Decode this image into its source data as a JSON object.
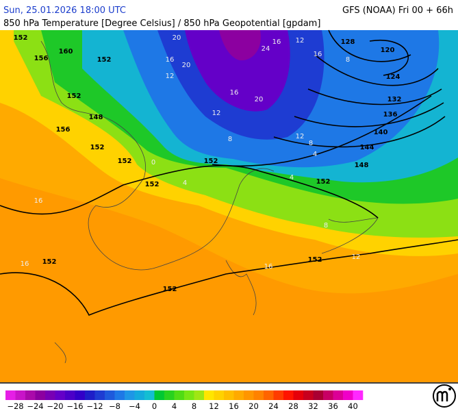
{
  "header": {
    "valid_time": "Sun, 25.01.2026 18:00 UTC",
    "model": "GFS (NOAA) Fri 00 + 66h",
    "title": "850 hPa Temperature [Degree Celsius] / 850 hPa Geopotential [gpdam]"
  },
  "map": {
    "geopotential_labels": [
      128,
      120,
      124,
      132,
      136,
      140,
      144,
      148,
      152,
      152,
      152,
      152,
      152,
      152,
      152,
      148,
      152,
      152,
      156,
      152,
      160,
      152,
      156
    ],
    "temperature_labels": [
      20,
      20,
      24,
      16,
      12,
      16,
      8,
      20,
      16,
      12,
      8,
      12,
      8,
      4,
      4,
      0,
      4,
      8,
      12,
      16,
      16,
      16,
      12,
      16
    ]
  },
  "legend": {
    "colors": [
      "#e61ee6",
      "#c814c8",
      "#aa0aaa",
      "#8c00a0",
      "#7800b4",
      "#6400c8",
      "#4b00c8",
      "#3200c8",
      "#1e1ec8",
      "#1e3cd2",
      "#1e5adc",
      "#1e78e6",
      "#1e96e6",
      "#14aadc",
      "#14bed2",
      "#00c832",
      "#28d21e",
      "#50dc14",
      "#78e614",
      "#a0e614",
      "#ffe600",
      "#ffd200",
      "#ffbe00",
      "#ffaa00",
      "#ff9600",
      "#ff8200",
      "#ff6400",
      "#ff3c00",
      "#ff1400",
      "#e6000a",
      "#c8001e",
      "#aa0032",
      "#c80064",
      "#dc0096",
      "#f000c8",
      "#ff28ff"
    ],
    "ticks": [
      "−28",
      "−24",
      "−20",
      "−16",
      "−12",
      "−8",
      "−4",
      "0",
      "4",
      "8",
      "12",
      "16",
      "20",
      "24",
      "28",
      "32",
      "36",
      "40"
    ]
  }
}
